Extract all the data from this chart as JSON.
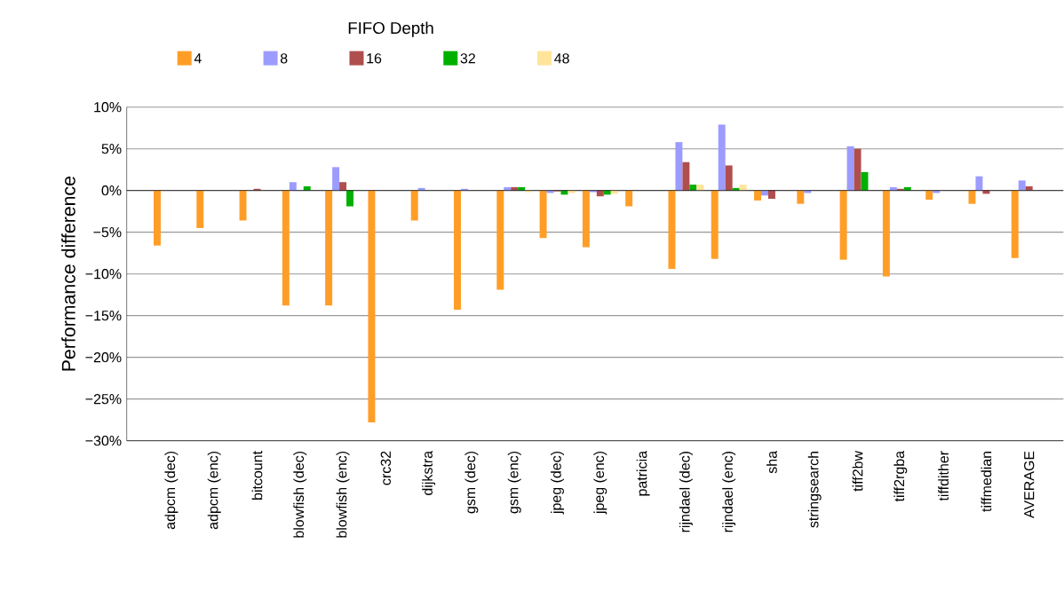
{
  "chart_data": {
    "type": "bar",
    "ylabel": "Performance difference",
    "legend_title": "FIFO Depth",
    "legend": "top",
    "grid": "y",
    "categories": [
      "adpcm (dec)",
      "adpcm (enc)",
      "bitcount",
      "blowfish (dec)",
      "blowfish (enc)",
      "crc32",
      "dijkstra",
      "gsm (dec)",
      "gsm (enc)",
      "jpeg (dec)",
      "jpeg (enc)",
      "patricia",
      "rijndael (dec)",
      "rijndael (enc)",
      "sha",
      "stringsearch",
      "tiff2bw",
      "tiff2rgba",
      "tiffdither",
      "tiffmedian",
      "AVERAGE"
    ],
    "series": [
      {
        "name": "4",
        "color": "#ff9e27",
        "values": [
          -6.6,
          -4.5,
          -3.6,
          -13.8,
          -13.8,
          -27.8,
          -3.6,
          -14.3,
          -11.9,
          -5.7,
          -6.8,
          -1.9,
          -9.4,
          -8.2,
          -1.2,
          -1.6,
          -8.3,
          -10.3,
          -1.1,
          -1.6,
          -8.1
        ]
      },
      {
        "name": "8",
        "color": "#9c9cff",
        "values": [
          0,
          0,
          0,
          1.0,
          2.8,
          0,
          0.3,
          0.2,
          0.4,
          -0.3,
          -0.2,
          0,
          5.8,
          7.9,
          -0.6,
          -0.3,
          5.3,
          0.4,
          -0.3,
          1.7,
          1.2
        ]
      },
      {
        "name": "16",
        "color": "#b04e4e",
        "values": [
          0,
          0,
          0.2,
          null,
          1.0,
          0,
          0,
          0,
          0.4,
          -0.1,
          -0.7,
          0,
          3.4,
          3.0,
          -1.0,
          0,
          5.0,
          0.2,
          0,
          -0.4,
          0.5
        ]
      },
      {
        "name": "32",
        "color": "#00b000",
        "values": [
          0,
          0,
          0,
          0.5,
          -1.9,
          0,
          0,
          0,
          0.4,
          -0.5,
          -0.5,
          0,
          0.7,
          0.3,
          null,
          0,
          2.2,
          0.4,
          0,
          0,
          null
        ]
      },
      {
        "name": "48",
        "color": "#ffe49a",
        "values": [
          0,
          0,
          0,
          0,
          0,
          0,
          0,
          0,
          -0.2,
          -0.3,
          -0.4,
          0,
          0.7,
          0.7,
          0,
          0,
          0,
          null,
          0,
          0,
          0
        ]
      }
    ],
    "ylim": [
      -30,
      10
    ],
    "yticks": [
      {
        "value": -30,
        "label": "−30%"
      },
      {
        "value": -25,
        "label": "−25%"
      },
      {
        "value": -20,
        "label": "−20%"
      },
      {
        "value": -15,
        "label": "−15%"
      },
      {
        "value": -10,
        "label": "−10%"
      },
      {
        "value": -5,
        "label": "−5%"
      },
      {
        "value": 0,
        "label": "0%"
      },
      {
        "value": 5,
        "label": "5%"
      },
      {
        "value": 10,
        "label": "10%"
      }
    ]
  }
}
